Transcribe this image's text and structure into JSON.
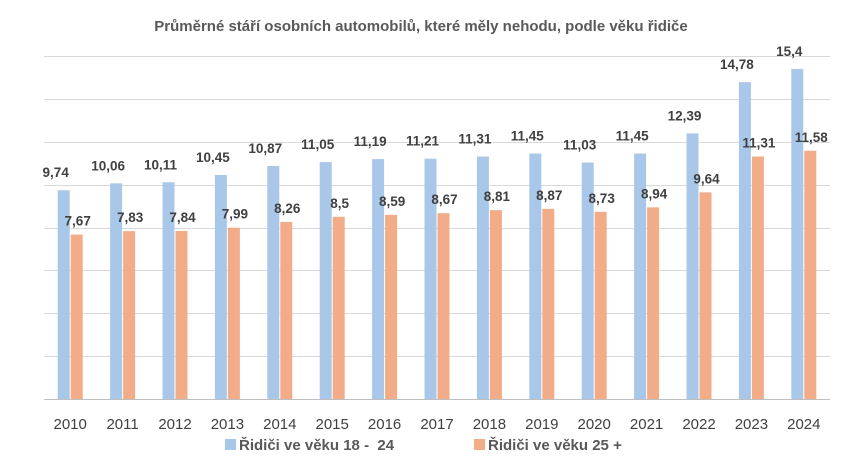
{
  "chart_data": {
    "type": "bar",
    "title": "Průměrné stáří osobních automobilů, které měly nehodu, podle věku řidiče",
    "xlabel": "",
    "ylabel": "",
    "categories": [
      "2010",
      "2011",
      "2012",
      "2013",
      "2014",
      "2015",
      "2016",
      "2017",
      "2018",
      "2019",
      "2020",
      "2021",
      "2022",
      "2023",
      "2024"
    ],
    "series": [
      {
        "name": "Řidiči ve věku 18 -  24",
        "color": "#a9c8e9",
        "values": [
          9.74,
          10.06,
          10.11,
          10.45,
          10.87,
          11.05,
          11.19,
          11.21,
          11.31,
          11.45,
          11.03,
          11.45,
          12.39,
          14.78,
          15.4
        ],
        "labels": [
          "9,74",
          "10,06",
          "10,11",
          "10,45",
          "10,87",
          "11,05",
          "11,19",
          "11,21",
          "11,31",
          "11,45",
          "11,03",
          "11,45",
          "12,39",
          "14,78",
          "15,4"
        ]
      },
      {
        "name": "Řidiči ve věku 25 +",
        "color": "#f2ac88",
        "values": [
          7.67,
          7.83,
          7.84,
          7.99,
          8.26,
          8.5,
          8.59,
          8.67,
          8.81,
          8.87,
          8.73,
          8.94,
          9.64,
          11.31,
          11.58
        ],
        "labels": [
          "7,67",
          "7,83",
          "7,84",
          "7,99",
          "8,26",
          "8,5",
          "8,59",
          "8,67",
          "8,81",
          "8,87",
          "8,73",
          "8,94",
          "9,64",
          "11,31",
          "11,58"
        ]
      }
    ],
    "ylim": [
      0,
      16
    ],
    "gridlines": [
      0,
      2,
      4,
      6,
      8,
      10,
      12,
      14,
      16
    ],
    "y_ticks_shown": false,
    "grid": true,
    "gridline_color": "#d9d9d9",
    "legend_position": "bottom"
  }
}
